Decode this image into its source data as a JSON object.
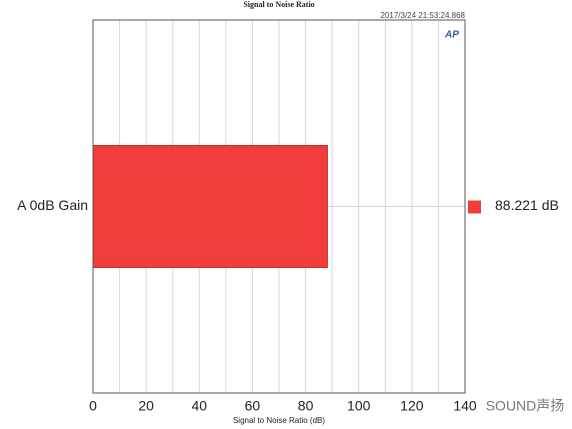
{
  "chart_data": {
    "type": "barh",
    "title": "Signal to Noise Ratio",
    "timestamp": "2017/3/24 21:53:24.868",
    "logo": "AP",
    "categories": [
      "A 0dB Gain"
    ],
    "values": [
      88.221
    ],
    "value_labels": [
      "88.221 dB"
    ],
    "color": "#f23c3c",
    "xlabel": "Signal to Noise Ratio (dB)",
    "xlim": [
      0,
      140
    ],
    "xticks": [
      0,
      20,
      40,
      60,
      80,
      100,
      120,
      140
    ],
    "minor_xticks": [
      10,
      30,
      50,
      70,
      90,
      110,
      130
    ],
    "grid": true,
    "watermark": "SOUND声扬"
  }
}
